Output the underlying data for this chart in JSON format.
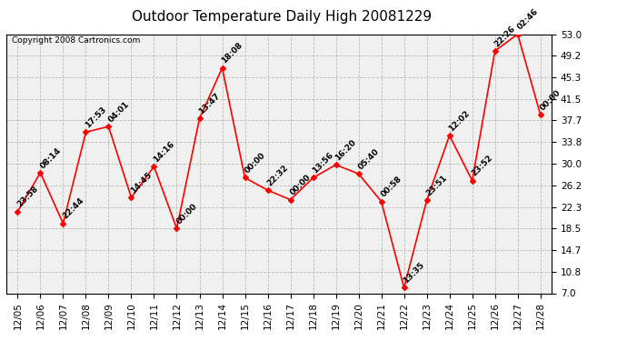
{
  "title": "Outdoor Temperature Daily High 20081229",
  "copyright": "Copyright 2008 Cartronics.com",
  "dates": [
    "12/05",
    "12/06",
    "12/07",
    "12/08",
    "12/09",
    "12/10",
    "12/11",
    "12/12",
    "12/13",
    "12/14",
    "12/15",
    "12/16",
    "12/17",
    "12/18",
    "12/19",
    "12/20",
    "12/21",
    "12/22",
    "12/23",
    "12/24",
    "12/25",
    "12/26",
    "12/27",
    "12/28"
  ],
  "values": [
    21.5,
    28.4,
    19.4,
    35.6,
    36.6,
    24.0,
    29.5,
    18.5,
    38.0,
    47.0,
    27.5,
    25.3,
    23.6,
    27.5,
    29.8,
    28.2,
    23.3,
    8.0,
    23.5,
    35.0,
    27.0,
    50.0,
    53.0,
    38.7
  ],
  "labels": [
    "23:58",
    "08:14",
    "22:44",
    "17:53",
    "04:01",
    "14:45",
    "14:16",
    "00:00",
    "13:47",
    "18:08",
    "00:00",
    "22:32",
    "00:00",
    "13:56",
    "16:20",
    "05:40",
    "00:58",
    "13:35",
    "23:51",
    "12:02",
    "23:52",
    "22:26",
    "02:46",
    "00:00"
  ],
  "yticks": [
    7.0,
    10.8,
    14.7,
    18.5,
    22.3,
    26.2,
    30.0,
    33.8,
    37.7,
    41.5,
    45.3,
    49.2,
    53.0
  ],
  "ylim": [
    7.0,
    53.0
  ],
  "line_color": "red",
  "marker_color": "red",
  "bg_color": "#ffffff",
  "plot_bg_color": "#f0f0f0",
  "grid_color": "#bbbbbb",
  "title_fontsize": 11,
  "label_fontsize": 6.5,
  "tick_fontsize": 7.5,
  "copyright_fontsize": 6.5
}
